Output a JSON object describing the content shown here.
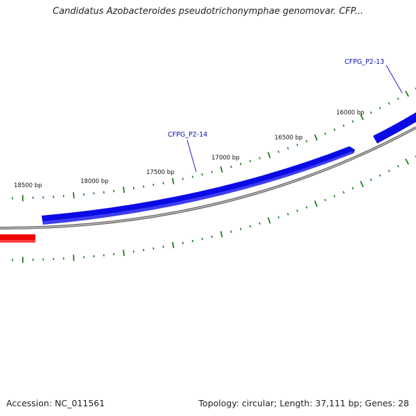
{
  "title": "Candidatus Azobacteroides pseudotrichonymphae genomovar. CFP...",
  "footer": {
    "accession": "Accession: NC_011561",
    "summary": "Topology: circular; Length: 37,111 bp; Genes: 28"
  },
  "colors": {
    "forward_gene": "#0a0ae6",
    "reverse_gene": "#f00000",
    "ticks": "#1a7a1a",
    "backbone": "#8a8a8a",
    "label_text": "#0b0bb8"
  },
  "bp_labels": [
    {
      "label": "18500 bp",
      "bp": 18500
    },
    {
      "label": "18000 bp",
      "bp": 18000
    },
    {
      "label": "17500 bp",
      "bp": 17500
    },
    {
      "label": "17000 bp",
      "bp": 17000
    },
    {
      "label": "16500 bp",
      "bp": 16500
    },
    {
      "label": "16000 bp",
      "bp": 16000
    }
  ],
  "gene_labels": [
    {
      "name": "CFPG_P2-14",
      "strand": "forward"
    },
    {
      "name": "CFPG_P2-13",
      "strand": "forward"
    }
  ]
}
